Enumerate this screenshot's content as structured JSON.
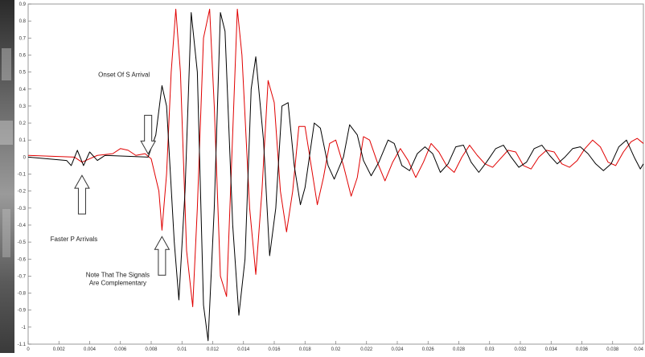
{
  "chart_data": {
    "type": "line",
    "title": "",
    "xlabel": "",
    "ylabel": "",
    "xlim": [
      0,
      0.04
    ],
    "ylim": [
      -1.1,
      0.9
    ],
    "x_ticks": [
      "0",
      "0.002",
      "0.004",
      "0.006",
      "0.008",
      "0.01",
      "0.012",
      "0.014",
      "0.016",
      "0.018",
      "0.02",
      "0.022",
      "0.024",
      "0.026",
      "0.028",
      "0.03",
      "0.032",
      "0.034",
      "0.036",
      "0.038",
      "0.04"
    ],
    "y_ticks": [
      "0.9",
      "0.8",
      "0.7",
      "0.6",
      "0.5",
      "0.4",
      "0.3",
      "0.2",
      "0.1",
      "0",
      "-0.1",
      "-0.2",
      "-0.3",
      "-0.4",
      "-0.5",
      "-0.6",
      "-0.7",
      "-0.8",
      "-0.9",
      "-1",
      "-1.1"
    ],
    "grid": false,
    "series": [
      {
        "color": "#000000",
        "points": [
          [
            0,
            0
          ],
          [
            0.0025,
            -0.02
          ],
          [
            0.0028,
            -0.05
          ],
          [
            0.0032,
            0.04
          ],
          [
            0.0036,
            -0.05
          ],
          [
            0.004,
            0.03
          ],
          [
            0.0045,
            -0.02
          ],
          [
            0.005,
            0.01
          ],
          [
            0.0078,
            0
          ],
          [
            0.0083,
            0.13
          ],
          [
            0.0087,
            0.42
          ],
          [
            0.009,
            0.3
          ],
          [
            0.0095,
            -0.5
          ],
          [
            0.0098,
            -0.84
          ],
          [
            0.0102,
            -0.2
          ],
          [
            0.0106,
            0.85
          ],
          [
            0.011,
            0.5
          ],
          [
            0.0114,
            -0.87
          ],
          [
            0.0117,
            -1.08
          ],
          [
            0.0121,
            -0.3
          ],
          [
            0.0125,
            0.85
          ],
          [
            0.0128,
            0.74
          ],
          [
            0.0133,
            -0.4
          ],
          [
            0.0137,
            -0.93
          ],
          [
            0.0141,
            -0.6
          ],
          [
            0.0145,
            0.4
          ],
          [
            0.0148,
            0.59
          ],
          [
            0.0153,
            0.1
          ],
          [
            0.0157,
            -0.58
          ],
          [
            0.0161,
            -0.3
          ],
          [
            0.0165,
            0.3
          ],
          [
            0.0169,
            0.32
          ],
          [
            0.0173,
            -0.05
          ],
          [
            0.0177,
            -0.28
          ],
          [
            0.018,
            -0.18
          ],
          [
            0.0186,
            0.2
          ],
          [
            0.019,
            0.17
          ],
          [
            0.0195,
            -0.05
          ],
          [
            0.0199,
            -0.13
          ],
          [
            0.0205,
            0.0
          ],
          [
            0.0209,
            0.19
          ],
          [
            0.0214,
            0.13
          ],
          [
            0.0218,
            -0.02
          ],
          [
            0.0223,
            -0.11
          ],
          [
            0.0228,
            -0.03
          ],
          [
            0.0234,
            0.1
          ],
          [
            0.0238,
            0.08
          ],
          [
            0.0243,
            -0.05
          ],
          [
            0.0248,
            -0.08
          ],
          [
            0.0253,
            0.02
          ],
          [
            0.0258,
            0.06
          ],
          [
            0.0263,
            0.02
          ],
          [
            0.0268,
            -0.09
          ],
          [
            0.0273,
            -0.04
          ],
          [
            0.0278,
            0.06
          ],
          [
            0.0283,
            0.07
          ],
          [
            0.0288,
            -0.03
          ],
          [
            0.0293,
            -0.09
          ],
          [
            0.0298,
            -0.03
          ],
          [
            0.0304,
            0.05
          ],
          [
            0.0309,
            0.07
          ],
          [
            0.0314,
            0.0
          ],
          [
            0.0319,
            -0.06
          ],
          [
            0.0324,
            -0.03
          ],
          [
            0.0329,
            0.05
          ],
          [
            0.0334,
            0.07
          ],
          [
            0.0339,
            0.01
          ],
          [
            0.0344,
            -0.04
          ],
          [
            0.0349,
            0.0
          ],
          [
            0.0354,
            0.05
          ],
          [
            0.0359,
            0.06
          ],
          [
            0.0364,
            0.02
          ],
          [
            0.0369,
            -0.04
          ],
          [
            0.0374,
            -0.08
          ],
          [
            0.0379,
            -0.04
          ],
          [
            0.0384,
            0.06
          ],
          [
            0.0389,
            0.1
          ],
          [
            0.0394,
            0.0
          ],
          [
            0.0398,
            -0.07
          ],
          [
            0.04,
            -0.04
          ]
        ]
      },
      {
        "color": "#e00000",
        "points": [
          [
            0,
            0.01
          ],
          [
            0.003,
            0
          ],
          [
            0.0035,
            -0.03
          ],
          [
            0.004,
            -0.01
          ],
          [
            0.0045,
            0.01
          ],
          [
            0.0055,
            0.02
          ],
          [
            0.006,
            0.05
          ],
          [
            0.0065,
            0.04
          ],
          [
            0.007,
            0.01
          ],
          [
            0.0076,
            0.02
          ],
          [
            0.008,
            -0.01
          ],
          [
            0.0085,
            -0.2
          ],
          [
            0.0087,
            -0.43
          ],
          [
            0.009,
            -0.1
          ],
          [
            0.0093,
            0.5
          ],
          [
            0.0096,
            0.87
          ],
          [
            0.0099,
            0.5
          ],
          [
            0.0103,
            -0.55
          ],
          [
            0.0107,
            -0.88
          ],
          [
            0.011,
            -0.3
          ],
          [
            0.0114,
            0.7
          ],
          [
            0.0118,
            0.87
          ],
          [
            0.0121,
            0.3
          ],
          [
            0.0125,
            -0.7
          ],
          [
            0.0129,
            -0.82
          ],
          [
            0.0132,
            -0.1
          ],
          [
            0.0136,
            0.87
          ],
          [
            0.0139,
            0.6
          ],
          [
            0.0144,
            -0.3
          ],
          [
            0.0148,
            -0.69
          ],
          [
            0.0152,
            -0.2
          ],
          [
            0.0156,
            0.45
          ],
          [
            0.016,
            0.32
          ],
          [
            0.0164,
            -0.2
          ],
          [
            0.0168,
            -0.44
          ],
          [
            0.0172,
            -0.2
          ],
          [
            0.0176,
            0.18
          ],
          [
            0.018,
            0.18
          ],
          [
            0.0184,
            -0.05
          ],
          [
            0.0188,
            -0.28
          ],
          [
            0.0192,
            -0.12
          ],
          [
            0.0196,
            0.08
          ],
          [
            0.02,
            0.1
          ],
          [
            0.0205,
            -0.05
          ],
          [
            0.021,
            -0.23
          ],
          [
            0.0214,
            -0.12
          ],
          [
            0.0218,
            0.12
          ],
          [
            0.0222,
            0.1
          ],
          [
            0.0227,
            -0.03
          ],
          [
            0.0232,
            -0.14
          ],
          [
            0.0237,
            -0.03
          ],
          [
            0.0242,
            0.05
          ],
          [
            0.0247,
            -0.02
          ],
          [
            0.0252,
            -0.12
          ],
          [
            0.0257,
            -0.03
          ],
          [
            0.0262,
            0.08
          ],
          [
            0.0267,
            0.03
          ],
          [
            0.0272,
            -0.05
          ],
          [
            0.0277,
            -0.09
          ],
          [
            0.0282,
            0.0
          ],
          [
            0.0287,
            0.07
          ],
          [
            0.0292,
            0.01
          ],
          [
            0.0297,
            -0.04
          ],
          [
            0.0302,
            -0.06
          ],
          [
            0.0307,
            -0.01
          ],
          [
            0.0312,
            0.04
          ],
          [
            0.0317,
            0.03
          ],
          [
            0.0322,
            -0.05
          ],
          [
            0.0327,
            -0.07
          ],
          [
            0.0332,
            0.0
          ],
          [
            0.0337,
            0.04
          ],
          [
            0.0342,
            0.03
          ],
          [
            0.0347,
            -0.04
          ],
          [
            0.0352,
            -0.06
          ],
          [
            0.0357,
            -0.02
          ],
          [
            0.0362,
            0.05
          ],
          [
            0.0367,
            0.1
          ],
          [
            0.0372,
            0.06
          ],
          [
            0.0377,
            -0.03
          ],
          [
            0.0382,
            -0.05
          ],
          [
            0.0387,
            0.03
          ],
          [
            0.0392,
            0.09
          ],
          [
            0.0396,
            0.11
          ],
          [
            0.04,
            0.08
          ]
        ]
      }
    ],
    "annotations": [
      {
        "id": "onset-s-arrival",
        "text": "Onset Of S Arrival",
        "x": 0.0078,
        "y": 0.0,
        "direction": "down"
      },
      {
        "id": "faster-p-arrivals",
        "text": "Faster P Arrivals",
        "x": 0.0035,
        "y": -0.07,
        "direction": "up"
      },
      {
        "id": "complementary-note",
        "text": [
          "Note That The Signals",
          "Are Complementary"
        ],
        "x": 0.0087,
        "y": -0.43,
        "direction": "up"
      }
    ]
  }
}
